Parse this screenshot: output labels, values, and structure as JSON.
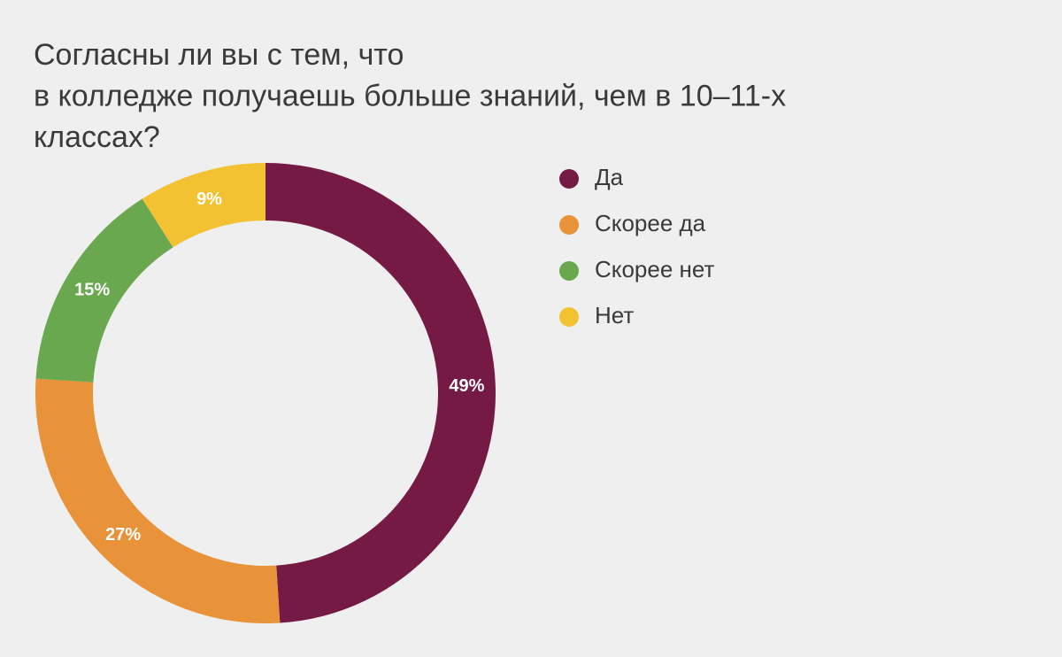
{
  "chart_data": {
    "type": "donut",
    "title": [
      "Согласны ли вы с тем, что",
      "в колледже получаешь больше знаний, чем в 10–11-х",
      "классах?"
    ],
    "categories": [
      "Да",
      "Скорее да",
      "Скорее нет",
      "Нет"
    ],
    "values": [
      49,
      27,
      15,
      9
    ],
    "value_labels": [
      "49%",
      "27%",
      "15%",
      "9%"
    ],
    "colors": [
      "#751a45",
      "#e8923a",
      "#6aa84f",
      "#f2c232"
    ],
    "legend": "right"
  }
}
